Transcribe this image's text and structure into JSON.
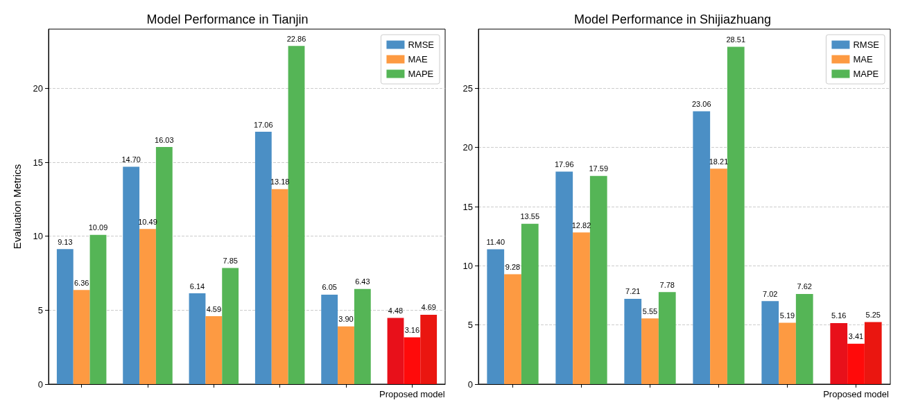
{
  "chart_data": [
    {
      "type": "bar",
      "title": "Model Performance in Tianjin",
      "ylabel": "Evaluation Metrics",
      "categories": [
        null,
        null,
        null,
        null,
        null,
        "Proposed model"
      ],
      "ylim": [
        0,
        24
      ],
      "yticks": [
        0,
        5,
        10,
        15,
        20
      ],
      "grid": "y",
      "legend": "top right",
      "series": [
        {
          "name": "RMSE",
          "color": "#4b8fc5",
          "colors": [
            "#4b8fc5",
            "#4b8fc5",
            "#4b8fc5",
            "#4b8fc5",
            "#4b8fc5",
            "#e8101a"
          ],
          "values": [
            9.13,
            14.7,
            6.14,
            17.06,
            6.05,
            4.48
          ],
          "value_labels": [
            "9.13",
            "14.70",
            "6.14",
            "17.06",
            "6.05",
            "4.48"
          ]
        },
        {
          "name": "MAE",
          "color": "#fd9a42",
          "colors": [
            "#fd9a42",
            "#fd9a42",
            "#fd9a42",
            "#fd9a42",
            "#fd9a42",
            "#ff0a0a"
          ],
          "values": [
            6.36,
            10.49,
            4.59,
            13.18,
            3.9,
            3.16
          ],
          "value_labels": [
            "6.36",
            "10.49",
            "4.59",
            "13.18",
            "3.90",
            "3.16"
          ]
        },
        {
          "name": "MAPE",
          "color": "#55b556",
          "colors": [
            "#55b556",
            "#55b556",
            "#55b556",
            "#55b556",
            "#55b556",
            "#ea1610"
          ],
          "values": [
            10.09,
            16.03,
            7.85,
            22.86,
            6.43,
            4.69
          ],
          "value_labels": [
            "10.09",
            "16.03",
            "7.85",
            "22.86",
            "6.43",
            "4.69"
          ]
        }
      ]
    },
    {
      "type": "bar",
      "title": "Model Performance in Shijiazhuang",
      "categories": [
        null,
        null,
        null,
        null,
        null,
        "Proposed model"
      ],
      "ylim": [
        0,
        30
      ],
      "yticks": [
        0,
        5,
        10,
        15,
        20,
        25
      ],
      "grid": "y",
      "legend": "top right",
      "series": [
        {
          "name": "RMSE",
          "color": "#4b8fc5",
          "colors": [
            "#4b8fc5",
            "#4b8fc5",
            "#4b8fc5",
            "#4b8fc5",
            "#4b8fc5",
            "#e8101a"
          ],
          "values": [
            11.4,
            17.96,
            7.21,
            23.06,
            7.02,
            5.16
          ],
          "value_labels": [
            "11.40",
            "17.96",
            "7.21",
            "23.06",
            "7.02",
            "5.16"
          ]
        },
        {
          "name": "MAE",
          "color": "#fd9a42",
          "colors": [
            "#fd9a42",
            "#fd9a42",
            "#fd9a42",
            "#fd9a42",
            "#fd9a42",
            "#ff0a0a"
          ],
          "values": [
            9.28,
            12.82,
            5.55,
            18.21,
            5.19,
            3.41
          ],
          "value_labels": [
            "9.28",
            "12.82",
            "5.55",
            "18.21",
            "5.19",
            "3.41"
          ]
        },
        {
          "name": "MAPE",
          "color": "#55b556",
          "colors": [
            "#55b556",
            "#55b556",
            "#55b556",
            "#55b556",
            "#55b556",
            "#ea1610"
          ],
          "values": [
            13.55,
            17.59,
            7.78,
            28.51,
            7.62,
            5.25
          ],
          "value_labels": [
            "13.55",
            "17.59",
            "7.78",
            "28.51",
            "7.62",
            "5.25"
          ]
        }
      ]
    }
  ]
}
